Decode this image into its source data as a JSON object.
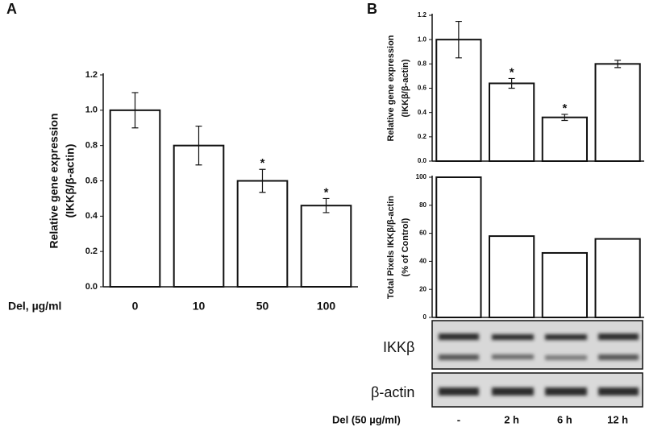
{
  "chart_data": [
    {
      "type": "bar",
      "panel": "A",
      "ylabel": [
        "Relative gene expression",
        "(IKKβ/β-actin)"
      ],
      "xlabel": "Del, µg/ml",
      "categories": [
        "0",
        "10",
        "50",
        "100"
      ],
      "values": [
        1.0,
        0.8,
        0.6,
        0.46
      ],
      "errors": [
        0.1,
        0.11,
        0.065,
        0.04
      ],
      "markers": [
        null,
        null,
        "*",
        "*"
      ],
      "color": "#ffffff",
      "ylim": [
        0,
        1.2
      ],
      "yticks": [
        {
          "value": 0,
          "label": "0.0"
        },
        0.2,
        0.4,
        0.6,
        0.8,
        {
          "value": 1,
          "label": "1.0"
        },
        1.2
      ]
    },
    {
      "type": "bar",
      "panel": "B",
      "ylabel": [
        "Relative gene expression",
        "(IKKβ/β-actin)"
      ],
      "categories": [
        null,
        null,
        null,
        null
      ],
      "values": [
        1.0,
        0.64,
        0.36,
        0.8
      ],
      "errors": [
        0.15,
        0.04,
        0.025,
        0.03
      ],
      "markers": [
        null,
        "*",
        "*",
        null
      ],
      "color": "#ffffff",
      "ylim": [
        0,
        1.2
      ],
      "yticks": [
        {
          "value": 0,
          "label": "0.0"
        },
        0.2,
        0.4,
        0.6,
        0.8,
        {
          "value": 1,
          "label": "1.0"
        },
        1.2
      ]
    },
    {
      "type": "bar",
      "ylabel": [
        "Total Pixels IKKβ/β-actin",
        "(% of Control)"
      ],
      "xlabel": "Del (50 µg/ml)",
      "categories": [
        "-",
        "2 h",
        "6 h",
        "12 h"
      ],
      "values": [
        100,
        58,
        46,
        56
      ],
      "color": "#ffffff",
      "ylim": [
        0,
        100
      ],
      "yticks": [
        0,
        20,
        40,
        60,
        80,
        100
      ]
    }
  ],
  "blot": {
    "rows": [
      "IKKβ",
      "β-actin"
    ]
  }
}
